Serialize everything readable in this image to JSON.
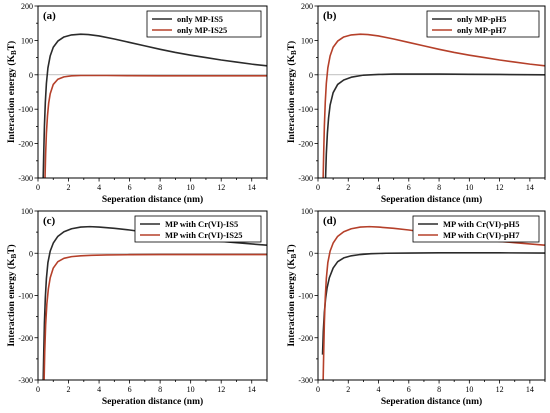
{
  "colors": {
    "series1": "#2b2b2b",
    "series2": "#b5402a",
    "zero_line": "#9a9a9a",
    "axis": "#000000"
  },
  "chart_data": [
    {
      "type": "line",
      "panel_label": "(a)",
      "xlabel": "Seperation distance (nm)",
      "ylabel": "Interaction energy (K_B T)",
      "xlim": [
        0,
        15
      ],
      "ylim": [
        -300,
        200
      ],
      "xticks": [
        0,
        2,
        4,
        6,
        8,
        10,
        12,
        14
      ],
      "yticks": [
        -300,
        -200,
        -100,
        0,
        100,
        200
      ],
      "legend_position": "top-right",
      "series": [
        {
          "name": "only MP-IS5",
          "color_key": "series1",
          "x": [
            0.34,
            0.38,
            0.42,
            0.48,
            0.55,
            0.65,
            0.8,
            1.0,
            1.3,
            1.7,
            2.2,
            2.8,
            3.3,
            4,
            5,
            6,
            7,
            8,
            9,
            10,
            11,
            12,
            13,
            14,
            15
          ],
          "y": [
            -300,
            -220,
            -150,
            -80,
            -25,
            20,
            55,
            80,
            98,
            110,
            116,
            118,
            117,
            113,
            104,
            94,
            84,
            74,
            65,
            57,
            50,
            43,
            37,
            31,
            26
          ]
        },
        {
          "name": "only MP-IS25",
          "color_key": "series2",
          "x": [
            0.46,
            0.5,
            0.55,
            0.62,
            0.7,
            0.8,
            1.0,
            1.3,
            1.7,
            2.2,
            2.8,
            3.5,
            4.5,
            6,
            8,
            10,
            12,
            15
          ],
          "y": [
            -300,
            -230,
            -170,
            -120,
            -82,
            -55,
            -28,
            -13,
            -6,
            -3,
            -2,
            -2,
            -2,
            -2.5,
            -3,
            -3,
            -3,
            -3
          ]
        }
      ]
    },
    {
      "type": "line",
      "panel_label": "(b)",
      "xlabel": "Seperation distance (nm)",
      "ylabel": "Interaction energy (K_B T)",
      "xlim": [
        0,
        15
      ],
      "ylim": [
        -300,
        200
      ],
      "xticks": [
        0,
        2,
        4,
        6,
        8,
        10,
        12,
        14
      ],
      "yticks": [
        -300,
        -200,
        -100,
        0,
        100,
        200
      ],
      "legend_position": "top-right",
      "series": [
        {
          "name": "only MP-pH5",
          "color_key": "series1",
          "x": [
            0.5,
            0.55,
            0.62,
            0.7,
            0.8,
            1.0,
            1.3,
            1.7,
            2.2,
            3,
            4,
            5,
            6,
            7,
            8,
            10,
            12,
            15
          ],
          "y": [
            -300,
            -230,
            -170,
            -125,
            -88,
            -52,
            -28,
            -15,
            -7,
            -1,
            1,
            2,
            2,
            2,
            2,
            1.5,
            1,
            0
          ]
        },
        {
          "name": "only MP-pH7",
          "color_key": "series2",
          "x": [
            0.34,
            0.38,
            0.42,
            0.48,
            0.55,
            0.65,
            0.8,
            1.0,
            1.3,
            1.7,
            2.2,
            2.8,
            3.3,
            4,
            5,
            6,
            7,
            8,
            9,
            10,
            11,
            12,
            13,
            14,
            15
          ],
          "y": [
            -300,
            -220,
            -150,
            -80,
            -25,
            20,
            55,
            80,
            98,
            110,
            116,
            118,
            117,
            113,
            104,
            94,
            84,
            74,
            65,
            57,
            50,
            43,
            37,
            31,
            26
          ]
        }
      ]
    },
    {
      "type": "line",
      "panel_label": "(c)",
      "xlabel": "Seperation distance (nm)",
      "ylabel": "Interaction energy (K_B T)",
      "xlim": [
        0,
        15
      ],
      "ylim": [
        -300,
        100
      ],
      "xticks": [
        0,
        2,
        4,
        6,
        8,
        10,
        12,
        14
      ],
      "yticks": [
        -300,
        -200,
        -100,
        0,
        100
      ],
      "legend_position": "top-right",
      "series": [
        {
          "name": "MP with Cr(VI)-IS5",
          "color_key": "series1",
          "x": [
            0.34,
            0.38,
            0.42,
            0.48,
            0.55,
            0.65,
            0.8,
            1.0,
            1.3,
            1.7,
            2.2,
            2.8,
            3.4,
            4,
            5,
            6,
            7,
            8,
            9,
            10,
            11,
            12,
            13,
            14,
            15
          ],
          "y": [
            -300,
            -230,
            -165,
            -105,
            -60,
            -22,
            5,
            24,
            40,
            51,
            58,
            62,
            63,
            62,
            59,
            55,
            50,
            45,
            41,
            36,
            32,
            28,
            25,
            22,
            19
          ]
        },
        {
          "name": "MP with Cr(VI)-IS25",
          "color_key": "series2",
          "x": [
            0.4,
            0.44,
            0.5,
            0.58,
            0.68,
            0.8,
            1.0,
            1.3,
            1.7,
            2.2,
            2.8,
            3.5,
            4.5,
            6,
            8,
            10,
            12,
            15
          ],
          "y": [
            -300,
            -235,
            -170,
            -120,
            -84,
            -58,
            -35,
            -20,
            -12,
            -8,
            -6,
            -5,
            -4,
            -3.5,
            -3,
            -3,
            -3,
            -3
          ]
        }
      ]
    },
    {
      "type": "line",
      "panel_label": "(d)",
      "xlabel": "Seperation distance (nm)",
      "ylabel": "Interaction energy (K_B T)",
      "xlim": [
        0,
        15
      ],
      "ylim": [
        -300,
        100
      ],
      "xticks": [
        0,
        2,
        4,
        6,
        8,
        10,
        12,
        14
      ],
      "yticks": [
        -300,
        -200,
        -100,
        0,
        100
      ],
      "legend_position": "top-right",
      "series": [
        {
          "name": "MP with Cr(VI)-pH5",
          "color_key": "series1",
          "x": [
            0.3,
            0.35,
            0.42,
            0.5,
            0.6,
            0.75,
            1.0,
            1.3,
            1.7,
            2.2,
            2.8,
            3.5,
            4.5,
            6,
            8,
            10,
            12,
            15
          ],
          "y": [
            -240,
            -185,
            -140,
            -108,
            -82,
            -58,
            -35,
            -20,
            -11,
            -6,
            -3,
            -1,
            0,
            0.5,
            1,
            1,
            1,
            0.5
          ]
        },
        {
          "name": "MP with Cr(VI)-pH7",
          "color_key": "series2",
          "x": [
            0.34,
            0.38,
            0.42,
            0.48,
            0.55,
            0.65,
            0.8,
            1.0,
            1.3,
            1.7,
            2.2,
            2.8,
            3.4,
            4,
            5,
            6,
            7,
            8,
            9,
            10,
            11,
            12,
            13,
            14,
            15
          ],
          "y": [
            -300,
            -230,
            -165,
            -105,
            -60,
            -22,
            5,
            24,
            40,
            51,
            58,
            62,
            63,
            62,
            59,
            55,
            50,
            45,
            41,
            36,
            32,
            28,
            25,
            22,
            19
          ]
        }
      ]
    }
  ]
}
